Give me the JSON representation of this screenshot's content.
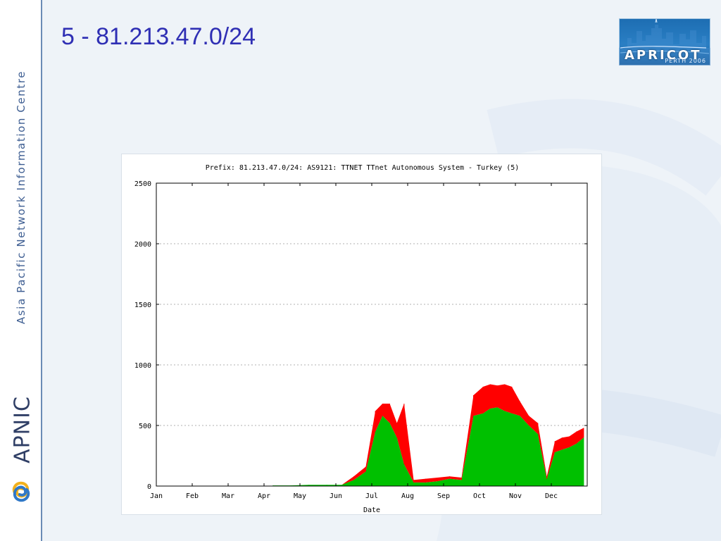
{
  "sidebar": {
    "org_name": "Asia Pacific Network Information Centre",
    "brand": "APNIC"
  },
  "slide": {
    "title": "5 - 81.213.47.0/24"
  },
  "event_logo": {
    "name": "APRICOT",
    "subtitle": "PERTH 2006"
  },
  "colors": {
    "title": "#2f2fb4",
    "left_rule": "#6a8bb5",
    "green": "#00c000",
    "red": "#ff0000",
    "grid": "#999999"
  },
  "chart_data": {
    "type": "area",
    "title": "Prefix: 81.213.47.0/24: AS9121: TTNET TTnet Autonomous System - Turkey (5)",
    "xlabel": "Date",
    "ylabel": "",
    "ylim": [
      0,
      2500
    ],
    "yticks": [
      0,
      500,
      1000,
      1500,
      2000,
      2500
    ],
    "xticks": [
      "Jan",
      "Feb",
      "Mar",
      "Apr",
      "May",
      "Jun",
      "Jul",
      "Aug",
      "Sep",
      "Oct",
      "Nov",
      "Dec"
    ],
    "grid": "horizontal dotted",
    "x": [
      "Apr",
      "Apr",
      "May",
      "May",
      "Jun",
      "Jun",
      "Jun",
      "Jul",
      "Jul",
      "Jul",
      "Jul",
      "Jul",
      "Aug",
      "Aug",
      "Aug",
      "Sep",
      "Sep",
      "Sep",
      "Oct",
      "Oct",
      "Oct",
      "Oct",
      "Oct",
      "Nov",
      "Nov",
      "Nov",
      "Nov",
      "Dec",
      "Dec",
      "Dec",
      "Dec",
      "Dec"
    ],
    "series": [
      {
        "values": [
          5,
          5,
          10,
          10,
          10,
          50,
          120,
          450,
          580,
          520,
          400,
          180,
          30,
          30,
          40,
          60,
          50,
          580,
          600,
          640,
          650,
          620,
          600,
          580,
          500,
          430,
          60,
          280,
          300,
          320,
          350,
          400
        ]
      },
      {
        "values": [
          0,
          0,
          0,
          0,
          0,
          30,
          40,
          170,
          100,
          160,
          120,
          500,
          20,
          30,
          30,
          20,
          20,
          170,
          220,
          200,
          180,
          220,
          220,
          120,
          80,
          90,
          20,
          90,
          100,
          90,
          100,
          80
        ]
      }
    ]
  }
}
